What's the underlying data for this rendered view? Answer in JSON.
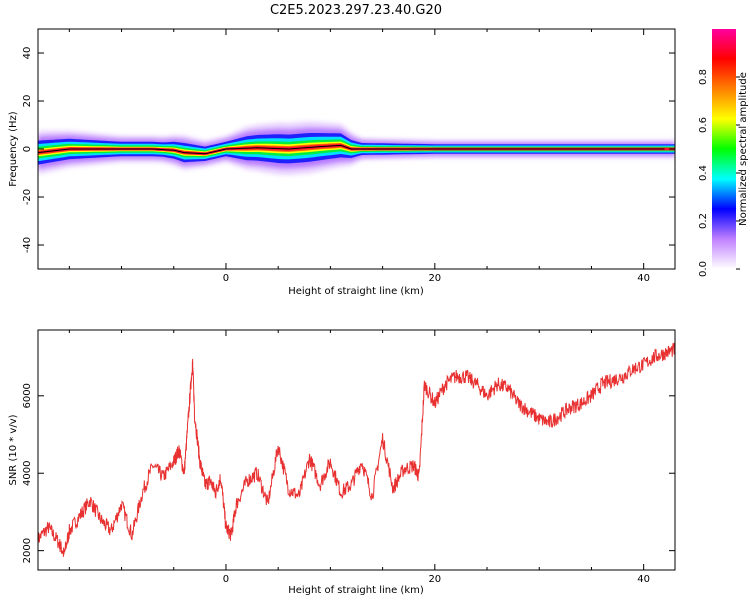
{
  "title": "C2E5.2023.297.23.40.G20",
  "colorbar": {
    "label": "Normalized spectral amplitude",
    "ticks": [
      0.0,
      0.2,
      0.4,
      0.6,
      0.8
    ],
    "range": [
      0,
      1
    ],
    "colors": [
      "#ffffff",
      "#c080ff",
      "#0000ff",
      "#00ffff",
      "#00ff00",
      "#ffff00",
      "#ff8000",
      "#ff0000",
      "#ff00a0"
    ]
  },
  "chart_data": [
    {
      "type": "heatmap",
      "xlabel": "Height of straight line (km)",
      "ylabel": "Frequency (Hz)",
      "xlim": [
        -18,
        43
      ],
      "ylim": [
        -50,
        50
      ],
      "xticks": [
        0,
        20,
        40
      ],
      "yticks": [
        40,
        20,
        0,
        -20,
        -40
      ],
      "track_color": "#000000",
      "track": [
        {
          "x": -18,
          "y": -1.5
        },
        {
          "x": -15,
          "y": 0
        },
        {
          "x": -10,
          "y": 0
        },
        {
          "x": -7,
          "y": 0
        },
        {
          "x": -5,
          "y": -0.5
        },
        {
          "x": -4,
          "y": -1.5
        },
        {
          "x": -2,
          "y": -2
        },
        {
          "x": 0,
          "y": 0
        },
        {
          "x": 3,
          "y": 0.5
        },
        {
          "x": 6,
          "y": 0
        },
        {
          "x": 9,
          "y": 1
        },
        {
          "x": 11,
          "y": 1.5
        },
        {
          "x": 12,
          "y": 0
        },
        {
          "x": 20,
          "y": 0
        },
        {
          "x": 30,
          "y": 0
        },
        {
          "x": 42,
          "y": 0
        }
      ],
      "spread": [
        {
          "x": -18,
          "w": 5
        },
        {
          "x": -14,
          "w": 4
        },
        {
          "x": -10,
          "w": 3
        },
        {
          "x": -6,
          "w": 3
        },
        {
          "x": -4,
          "w": 4
        },
        {
          "x": -2,
          "w": 3
        },
        {
          "x": 0,
          "w": 3
        },
        {
          "x": 2,
          "w": 5
        },
        {
          "x": 5,
          "w": 6
        },
        {
          "x": 8,
          "w": 6
        },
        {
          "x": 11,
          "w": 5
        },
        {
          "x": 13,
          "w": 2.5
        },
        {
          "x": 20,
          "w": 2
        },
        {
          "x": 30,
          "w": 2
        },
        {
          "x": 42,
          "w": 2
        }
      ]
    },
    {
      "type": "line",
      "xlabel": "Height of straight line (km)",
      "ylabel": "SNR (10 * v/v)",
      "xlim": [
        -18,
        43
      ],
      "ylim": [
        1500,
        7700
      ],
      "xticks": [
        0,
        20,
        40
      ],
      "yticks": [
        2000,
        4000,
        6000
      ],
      "color": "#e83030",
      "x": [
        -18,
        -17,
        -16,
        -15.5,
        -15,
        -14,
        -13,
        -12,
        -11,
        -10,
        -9,
        -8,
        -7,
        -6,
        -5,
        -4.5,
        -4,
        -3.5,
        -3.2,
        -3,
        -2.5,
        -2,
        -1.5,
        -1,
        -0.5,
        0,
        0.5,
        1,
        2,
        3,
        4,
        5,
        6,
        7,
        8,
        9,
        10,
        11,
        12,
        13,
        14,
        15,
        16,
        17,
        18,
        18.5,
        19,
        20,
        21,
        22,
        23,
        24,
        25,
        26,
        27,
        28,
        29,
        30,
        31,
        32,
        33,
        34,
        35,
        36,
        37,
        38,
        39,
        40,
        41,
        42,
        43
      ],
      "y": [
        2300,
        2600,
        2200,
        1900,
        2500,
        2900,
        3300,
        2800,
        2500,
        3200,
        2400,
        3500,
        4200,
        3900,
        4300,
        4600,
        4000,
        5800,
        6900,
        5500,
        4300,
        3700,
        3800,
        3500,
        3900,
        2600,
        2400,
        3200,
        3800,
        4000,
        3200,
        4700,
        3600,
        3400,
        4400,
        3700,
        4300,
        3500,
        3700,
        4300,
        3400,
        4900,
        3600,
        4100,
        4200,
        3900,
        6300,
        5800,
        6300,
        6500,
        6500,
        6300,
        6000,
        6300,
        6200,
        5800,
        5600,
        5400,
        5300,
        5500,
        5700,
        5800,
        6000,
        6300,
        6400,
        6500,
        6700,
        6800,
        7000,
        7100,
        7200
      ]
    }
  ]
}
